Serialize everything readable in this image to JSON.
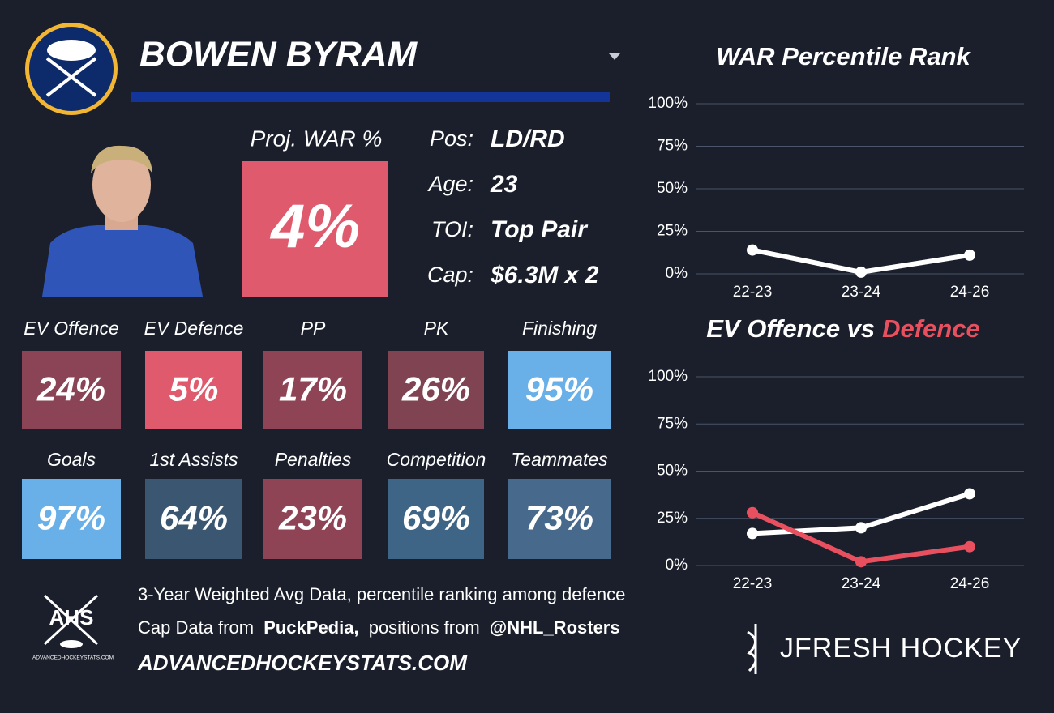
{
  "header": {
    "name": "BOWEN BYRAM"
  },
  "summary": {
    "label": "Proj. WAR %",
    "value": "4%",
    "color": "#e05a6d"
  },
  "bio": [
    {
      "label": "Pos:",
      "value": "LD/RD"
    },
    {
      "label": "Age:",
      "value": "23"
    },
    {
      "label": "TOI:",
      "value": "Top Pair"
    },
    {
      "label": "Cap:",
      "value": "$6.3M x 2"
    }
  ],
  "tiles": [
    {
      "label": "EV Offence",
      "value": "24%",
      "color": "#8a4455"
    },
    {
      "label": "EV Defence",
      "value": "5%",
      "color": "#e05a6d"
    },
    {
      "label": "PP",
      "value": "17%",
      "color": "#8f4456"
    },
    {
      "label": "PK",
      "value": "26%",
      "color": "#7f4352"
    },
    {
      "label": "Finishing",
      "value": "95%",
      "color": "#6ab0e8"
    },
    {
      "label": "Goals",
      "value": "97%",
      "color": "#6ab0e8"
    },
    {
      "label": "1st Assists",
      "value": "64%",
      "color": "#3a5670"
    },
    {
      "label": "Penalties",
      "value": "23%",
      "color": "#8f4456"
    },
    {
      "label": "Competition",
      "value": "69%",
      "color": "#3f6586"
    },
    {
      "label": "Teammates",
      "value": "73%",
      "color": "#47698c"
    }
  ],
  "footer": {
    "logo_text": "AHS",
    "logo_caption": "ADVANCEDHOCKEYSTATS.COM",
    "note": "3-Year Weighted Avg Data, percentile ranking among defence",
    "credits": [
      "Cap Data from",
      "PuckPedia,",
      "positions from",
      "@NHL_Rosters"
    ],
    "site": "ADVANCEDHOCKEYSTATS.COM",
    "brand": "JFRESH HOCKEY"
  },
  "chart_data": [
    {
      "type": "line",
      "title": [
        {
          "text": "WAR Percentile Rank",
          "color": "#ffffff"
        }
      ],
      "categories": [
        "22-23",
        "23-24",
        "24-26"
      ],
      "series": [
        {
          "color": "#ffffff",
          "values": [
            14,
            1,
            11
          ]
        }
      ],
      "ylim": [
        0,
        100
      ],
      "yticks": [
        {
          "value": 0,
          "label": "0%"
        },
        {
          "value": 25,
          "label": "25%"
        },
        {
          "value": 50,
          "label": "50%"
        },
        {
          "value": 75,
          "label": "75%"
        },
        {
          "value": 100,
          "label": "100%"
        }
      ],
      "grid": true
    },
    {
      "type": "line",
      "title": [
        {
          "text": "EV Offence vs",
          "color": "#ffffff"
        },
        {
          "text": "Defence",
          "color": "#e8505f"
        }
      ],
      "categories": [
        "22-23",
        "23-24",
        "24-26"
      ],
      "series": [
        {
          "color": "#ffffff",
          "values": [
            17,
            20,
            38
          ]
        },
        {
          "color": "#e8505f",
          "values": [
            28,
            2,
            10
          ]
        }
      ],
      "ylim": [
        0,
        100
      ],
      "yticks": [
        {
          "value": 0,
          "label": "0%"
        },
        {
          "value": 25,
          "label": "25%"
        },
        {
          "value": 50,
          "label": "50%"
        },
        {
          "value": 75,
          "label": "75%"
        },
        {
          "value": 100,
          "label": "100%"
        }
      ],
      "grid": true
    }
  ]
}
